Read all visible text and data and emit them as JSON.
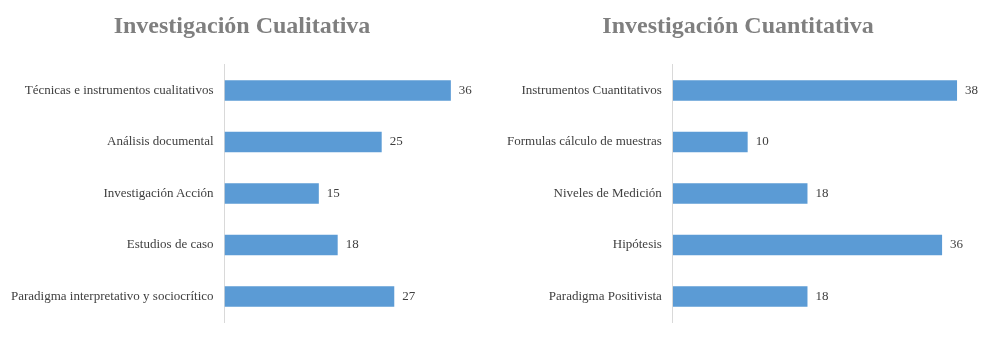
{
  "chart_data": [
    {
      "type": "bar",
      "orientation": "horizontal",
      "title": "Investigación Cualitativa",
      "categories": [
        "Técnicas e instrumentos cualitativos",
        "Análisis documental",
        "Investigación Acción",
        "Estudios de caso",
        "Paradigma interpretativo y sociocrítico"
      ],
      "values": [
        36,
        25,
        15,
        18,
        27
      ],
      "color": "#5b9bd5",
      "data_labels": true
    },
    {
      "type": "bar",
      "orientation": "horizontal",
      "title": "Investigación Cuantitativa",
      "categories": [
        "Instrumentos Cuantitativos",
        "Formulas cálculo de muestras",
        "Niveles de Medición",
        "Hipótesis",
        "Paradigma Positivista"
      ],
      "values": [
        38,
        10,
        18,
        36,
        18
      ],
      "color": "#5b9bd5",
      "data_labels": true
    }
  ]
}
